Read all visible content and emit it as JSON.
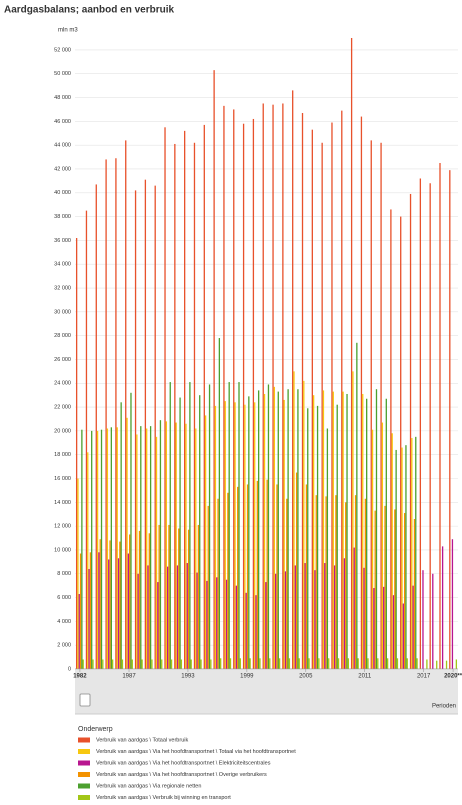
{
  "chart_data": {
    "type": "bar",
    "title": "Aardgasbalans; aanbod en verbruik",
    "y_label": "mln m3",
    "x_label": "Perioden",
    "legend_title": "Onderwerp",
    "categories": [
      "1982",
      null,
      null,
      null,
      null,
      "1987",
      null,
      null,
      null,
      null,
      null,
      "1993",
      null,
      null,
      null,
      null,
      null,
      "1999",
      null,
      null,
      null,
      null,
      null,
      "2005",
      null,
      null,
      null,
      null,
      null,
      "2011",
      null,
      null,
      null,
      null,
      null,
      "2017",
      null,
      null,
      "2020**"
    ],
    "series": [
      {
        "name": "Verbruik van aardgas \\ Totaal verbruik",
        "color": "#e8512b",
        "values": [
          36200,
          38500,
          40700,
          42800,
          42900,
          44400,
          40200,
          41100,
          40600,
          45500,
          44100,
          45200,
          44200,
          45700,
          50300,
          47300,
          47000,
          45800,
          46200,
          47500,
          47400,
          47500,
          48600,
          46700,
          45300,
          44200,
          45900,
          46900,
          53000,
          46400,
          44400,
          44200,
          38600,
          38000,
          39900,
          41200,
          40800,
          42500,
          41900
        ]
      },
      {
        "name": "Verbruik van aardgas \\ Via het hoofdtransportnet \\ Totaal via het hoofdtransportnet",
        "color": "#f7c80f",
        "values": [
          16000,
          18200,
          20000,
          20200,
          20300,
          21100,
          19700,
          20200,
          19500,
          20800,
          20700,
          20600,
          20200,
          21300,
          22100,
          22500,
          22400,
          22200,
          22400,
          23100,
          23700,
          22600,
          25000,
          24200,
          23000,
          23400,
          23300,
          23300,
          25000,
          23100,
          20100,
          20700,
          19800,
          18600,
          19400,
          null,
          null,
          null,
          null
        ]
      },
      {
        "name": "Verbruik van aardgas \\ Via het hoofdtransportnet \\ Elektriciteitscentrales",
        "color": "#b8168f",
        "values": [
          6300,
          8400,
          9800,
          9200,
          9300,
          9700,
          8000,
          8700,
          7300,
          8600,
          8700,
          8900,
          8100,
          7400,
          7700,
          7500,
          7000,
          6400,
          6200,
          7300,
          8000,
          8200,
          8700,
          8900,
          8300,
          8900,
          8700,
          9300,
          10200,
          8500,
          6800,
          6900,
          6200,
          5500,
          7000,
          8300,
          8000,
          10300,
          10900
        ]
      },
      {
        "name": "Verbruik van aardgas \\ Via het hoofdtransportnet \\ Overige verbruikers",
        "color": "#f39200",
        "values": [
          9700,
          9800,
          10900,
          10800,
          10700,
          11300,
          11600,
          11400,
          12100,
          12100,
          11800,
          11700,
          12100,
          13700,
          14300,
          14800,
          15300,
          15500,
          15800,
          15900,
          15500,
          14300,
          16500,
          15500,
          14600,
          14500,
          14600,
          14000,
          14600,
          14300,
          13300,
          13700,
          13400,
          13100,
          12600,
          null,
          null,
          null,
          null
        ]
      },
      {
        "name": "Verbruik van aardgas \\ Via regionale netten",
        "color": "#4ca02f",
        "values": [
          20100,
          20000,
          20100,
          20300,
          22400,
          23200,
          20400,
          20400,
          20900,
          24100,
          22800,
          24100,
          23000,
          23900,
          27800,
          24100,
          24100,
          22900,
          23400,
          23900,
          23300,
          23500,
          23500,
          21900,
          22100,
          20200,
          22200,
          23100,
          27400,
          22700,
          23500,
          22700,
          18400,
          18800,
          19500,
          null,
          null,
          null,
          null
        ]
      },
      {
        "name": "Verbruik van aardgas \\ Verbruik bij winning en transport",
        "color": "#a2c617",
        "values": [
          800,
          800,
          800,
          800,
          800,
          800,
          800,
          800,
          800,
          800,
          800,
          800,
          800,
          800,
          900,
          900,
          900,
          900,
          900,
          900,
          900,
          900,
          900,
          900,
          900,
          900,
          900,
          900,
          900,
          900,
          900,
          900,
          900,
          900,
          900,
          800,
          700,
          700,
          800
        ]
      }
    ],
    "ylim": [
      0,
      53000
    ],
    "yticks": [
      0,
      {
        "value": 2000,
        "label": "2 000"
      },
      {
        "value": 4000,
        "label": "4 000"
      },
      {
        "value": 6000,
        "label": "6 000"
      },
      {
        "value": 8000,
        "label": "8 000"
      },
      {
        "value": 10000,
        "label": "10 000"
      },
      {
        "value": 12000,
        "label": "12 000"
      },
      {
        "value": 14000,
        "label": "14 000"
      },
      {
        "value": 16000,
        "label": "16 000"
      },
      {
        "value": 18000,
        "label": "18 000"
      },
      {
        "value": 20000,
        "label": "20 000"
      },
      {
        "value": 22000,
        "label": "22 000"
      },
      {
        "value": 24000,
        "label": "24 000"
      },
      {
        "value": 26000,
        "label": "26 000"
      },
      {
        "value": 28000,
        "label": "28 000"
      },
      {
        "value": 30000,
        "label": "30 000"
      },
      {
        "value": 32000,
        "label": "32 000"
      },
      {
        "value": 34000,
        "label": "34 000"
      },
      {
        "value": 36000,
        "label": "36 000"
      },
      {
        "value": 38000,
        "label": "38 000"
      },
      {
        "value": 40000,
        "label": "40 000"
      },
      {
        "value": 42000,
        "label": "42 000"
      },
      {
        "value": 44000,
        "label": "44 000"
      },
      {
        "value": 46000,
        "label": "46 000"
      },
      {
        "value": 48000,
        "label": "48 000"
      },
      {
        "value": 50000,
        "label": "50 000"
      },
      {
        "value": 52000,
        "label": "52 000"
      }
    ],
    "grid": true
  }
}
